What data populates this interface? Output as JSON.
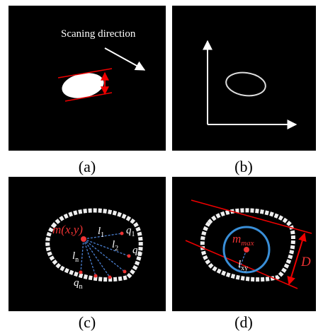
{
  "panels": [
    {
      "caption": "(a)",
      "annotation": "Scaning direction"
    },
    {
      "caption": "(b)"
    },
    {
      "caption": "(c)",
      "labels": [
        {
          "text": "m(x,y)"
        },
        {
          "text": "l",
          "sub": "1"
        },
        {
          "text": "l",
          "sub": "2"
        },
        {
          "text": "l",
          "sub": "n"
        },
        {
          "text": "q",
          "sub": "1"
        },
        {
          "text": "q",
          "sub": "2"
        },
        {
          "text": "q",
          "sub": "n"
        }
      ]
    },
    {
      "caption": "(d)",
      "labels": [
        {
          "text": "m",
          "sub": "max"
        },
        {
          "text": "l",
          "sub": "xy"
        },
        {
          "text": "D"
        }
      ]
    }
  ]
}
